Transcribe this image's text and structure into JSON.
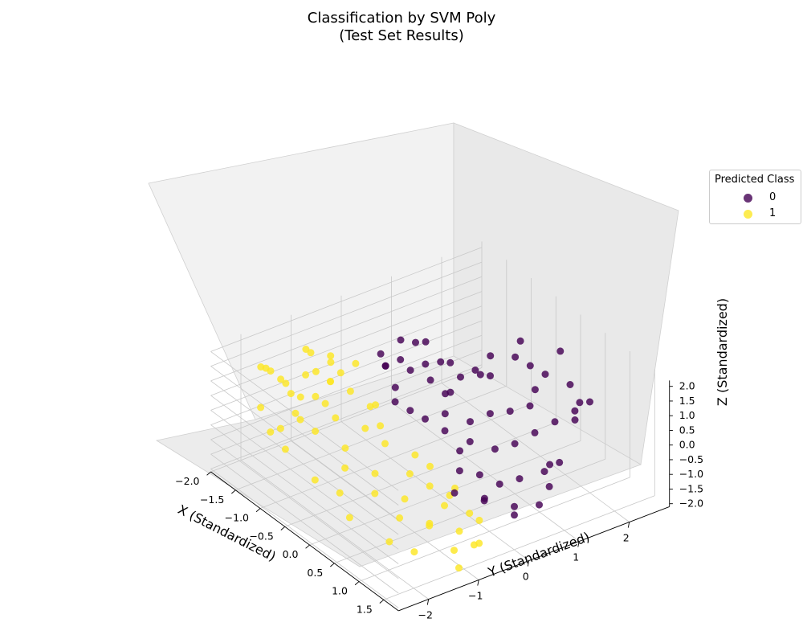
{
  "chart_data": {
    "type": "scatter",
    "title_line1": "Classification by SVM Poly",
    "title_line2": "(Test Set Results)",
    "xlabel": "X (Standardized)",
    "ylabel": "Y (Standardized)",
    "zlabel": "Z (Standardized)",
    "xlim": [
      -2.0,
      1.8
    ],
    "ylim": [
      -2.6,
      2.8
    ],
    "zlim": [
      -2.1,
      2.2
    ],
    "x_ticks": [
      "−2.0",
      "−1.5",
      "−1.0",
      "−0.5",
      "0.0",
      "0.5",
      "1.0",
      "1.5"
    ],
    "x_tick_values": [
      -2.0,
      -1.5,
      -1.0,
      -0.5,
      0.0,
      0.5,
      1.0,
      1.5
    ],
    "y_ticks": [
      "−2",
      "−1",
      "0",
      "1",
      "2"
    ],
    "y_tick_values": [
      -2,
      -1,
      0,
      1,
      2
    ],
    "z_ticks": [
      "−2.0",
      "−1.5",
      "−1.0",
      "−0.5",
      "0.0",
      "0.5",
      "1.0",
      "1.5",
      "2.0"
    ],
    "z_tick_values": [
      -2.0,
      -1.5,
      -1.0,
      -0.5,
      0.0,
      0.5,
      1.0,
      1.5,
      2.0
    ],
    "grid": true,
    "legend": {
      "title": "Predicted Class",
      "placement": "right",
      "entries": [
        {
          "label": "0",
          "color": "#440154"
        },
        {
          "label": "1",
          "color": "#fde725"
        }
      ]
    },
    "series": [
      {
        "name": "0",
        "color": "#440154",
        "points": [
          [
            -0.8,
            -0.3,
            1.5
          ],
          [
            -0.9,
            -0.2,
            1.3
          ],
          [
            -0.7,
            -0.1,
            1.7
          ],
          [
            -0.6,
            0.0,
            1.4
          ],
          [
            -0.5,
            -0.4,
            1.2
          ],
          [
            -0.4,
            -0.5,
            0.9
          ],
          [
            -0.3,
            -0.3,
            0.6
          ],
          [
            -0.2,
            -0.1,
            0.3
          ],
          [
            -0.5,
            0.2,
            1.6
          ],
          [
            -0.8,
            0.3,
            1.9
          ],
          [
            -0.3,
            0.5,
            1.7
          ],
          [
            -0.1,
            0.8,
            1.5
          ],
          [
            0.0,
            1.0,
            1.3
          ],
          [
            -0.2,
            1.2,
            1.6
          ],
          [
            0.1,
            1.4,
            1.8
          ],
          [
            0.2,
            1.6,
            1.5
          ],
          [
            0.3,
            1.8,
            1.2
          ],
          [
            0.4,
            1.5,
            1.0
          ],
          [
            0.5,
            1.3,
            0.7
          ],
          [
            0.3,
            1.1,
            0.4
          ],
          [
            0.1,
            0.9,
            0.2
          ],
          [
            0.0,
            0.6,
            0.0
          ],
          [
            0.2,
            0.4,
            -0.3
          ],
          [
            0.4,
            0.7,
            -0.5
          ],
          [
            0.6,
            0.9,
            -0.2
          ],
          [
            0.7,
            1.2,
            0.1
          ],
          [
            0.8,
            1.5,
            0.4
          ],
          [
            0.9,
            1.8,
            0.7
          ],
          [
            1.0,
            2.0,
            1.0
          ],
          [
            1.1,
            1.7,
            1.3
          ],
          [
            0.6,
            0.2,
            -0.8
          ],
          [
            0.8,
            0.4,
            -1.0
          ],
          [
            1.0,
            0.6,
            -0.7
          ],
          [
            1.2,
            0.9,
            -0.4
          ],
          [
            1.3,
            1.1,
            -0.1
          ],
          [
            1.4,
            0.8,
            -0.6
          ],
          [
            1.5,
            0.5,
            -0.9
          ],
          [
            1.2,
            0.3,
            -1.2
          ],
          [
            0.9,
            0.0,
            -1.1
          ],
          [
            1.1,
            -0.2,
            -0.8
          ],
          [
            -0.6,
            0.4,
            0.8
          ],
          [
            -0.4,
            0.6,
            0.5
          ],
          [
            -0.2,
            0.3,
            0.9
          ],
          [
            0.0,
            0.1,
            0.6
          ],
          [
            0.2,
            -0.1,
            0.4
          ],
          [
            -0.7,
            0.7,
            1.1
          ],
          [
            -0.5,
            0.9,
            0.7
          ],
          [
            -0.3,
            1.1,
            0.9
          ],
          [
            0.4,
            0.0,
            -0.1
          ],
          [
            0.6,
            -0.2,
            -0.4
          ],
          [
            -1.0,
            0.2,
            1.8
          ],
          [
            -0.9,
            0.6,
            1.6
          ],
          [
            -1.1,
            -0.1,
            1.4
          ],
          [
            0.8,
            1.9,
            0.2
          ],
          [
            0.5,
            2.1,
            0.9
          ],
          [
            -0.1,
            1.7,
            1.9
          ],
          [
            0.2,
            2.2,
            1.6
          ],
          [
            0.7,
            -0.4,
            -0.9
          ],
          [
            1.3,
            0.2,
            -1.3
          ],
          [
            0.9,
            1.3,
            -0.8
          ]
        ]
      },
      {
        "name": "1",
        "color": "#fde725",
        "points": [
          [
            -1.8,
            -1.8,
            1.2
          ],
          [
            -1.6,
            -1.6,
            0.9
          ],
          [
            -1.5,
            -1.9,
            1.5
          ],
          [
            -1.3,
            -1.5,
            0.6
          ],
          [
            -1.2,
            -1.7,
            0.3
          ],
          [
            -1.4,
            -1.3,
            1.1
          ],
          [
            -1.1,
            -1.4,
            0.8
          ],
          [
            -1.0,
            -1.8,
            0.4
          ],
          [
            -0.9,
            -1.6,
            0.0
          ],
          [
            -1.7,
            -1.4,
            0.5
          ],
          [
            -1.6,
            -2.0,
            0.2
          ],
          [
            -1.3,
            -2.1,
            -0.2
          ],
          [
            -1.0,
            -1.2,
            1.3
          ],
          [
            -0.8,
            -1.5,
            1.0
          ],
          [
            -1.5,
            -1.1,
            1.6
          ],
          [
            -1.2,
            -1.0,
            1.8
          ],
          [
            -0.9,
            -1.3,
            1.5
          ],
          [
            -1.8,
            -1.2,
            -0.1
          ],
          [
            -1.4,
            -1.8,
            -0.4
          ],
          [
            -1.1,
            -2.0,
            -0.6
          ],
          [
            -0.6,
            -1.3,
            -0.4
          ],
          [
            -0.4,
            -1.5,
            -0.7
          ],
          [
            -0.2,
            -1.1,
            -0.9
          ],
          [
            0.0,
            -1.3,
            -1.2
          ],
          [
            0.2,
            -0.9,
            -1.4
          ],
          [
            0.4,
            -1.2,
            -1.6
          ],
          [
            0.6,
            -0.8,
            -1.8
          ],
          [
            0.8,
            -1.0,
            -1.5
          ],
          [
            1.0,
            -0.6,
            -1.7
          ],
          [
            1.2,
            -0.9,
            -1.9
          ],
          [
            0.3,
            -0.5,
            -1.1
          ],
          [
            0.5,
            -0.3,
            -1.3
          ],
          [
            0.7,
            -0.6,
            -1.2
          ],
          [
            0.1,
            -0.7,
            -0.8
          ],
          [
            -0.1,
            -0.4,
            -0.6
          ],
          [
            1.4,
            -0.7,
            -1.6
          ],
          [
            1.5,
            -1.1,
            -2.0
          ],
          [
            0.9,
            -1.4,
            -2.0
          ],
          [
            0.6,
            -1.6,
            -1.9
          ],
          [
            1.1,
            -0.3,
            -1.4
          ],
          [
            -0.3,
            -0.8,
            -0.2
          ],
          [
            -0.5,
            -1.0,
            0.2
          ],
          [
            -0.7,
            -0.7,
            0.5
          ],
          [
            -0.9,
            -0.9,
            0.9
          ],
          [
            -1.1,
            -0.6,
            1.4
          ],
          [
            -0.8,
            -0.5,
            0.3
          ],
          [
            -0.6,
            -0.6,
            -0.1
          ],
          [
            -1.4,
            -0.8,
            1.2
          ],
          [
            -1.6,
            -0.9,
            0.7
          ],
          [
            -1.9,
            -1.6,
            0.9
          ],
          [
            0.0,
            -0.2,
            -1.0
          ],
          [
            0.3,
            0.0,
            -1.5
          ],
          [
            0.8,
            -0.2,
            -1.6
          ],
          [
            1.3,
            -0.5,
            -1.8
          ],
          [
            -0.2,
            -1.8,
            -1.1
          ],
          [
            -0.5,
            -2.0,
            -0.9
          ],
          [
            0.1,
            -1.9,
            -1.5
          ],
          [
            -1.7,
            -1.0,
            1.4
          ],
          [
            -1.0,
            -1.1,
            0.0
          ],
          [
            -1.3,
            -0.7,
            0.9
          ]
        ]
      }
    ]
  }
}
